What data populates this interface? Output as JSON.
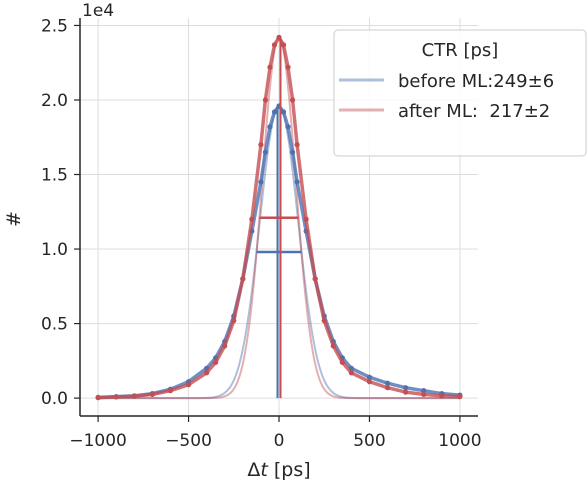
{
  "chart_data": {
    "type": "scatter",
    "title": "",
    "xlabel_prefix": "Δ",
    "xlabel_var": "t",
    "xlabel_unit": " [ps]",
    "ylabel": "#",
    "y_offset_label": "1e4",
    "xlim": [
      -1100,
      1100
    ],
    "ylim": [
      -0.12,
      2.55
    ],
    "x_ticks": [
      -1000,
      -500,
      0,
      500,
      1000
    ],
    "x_tick_labels": [
      "−1000",
      "−500",
      "0",
      "500",
      "1000"
    ],
    "y_ticks": [
      0.0,
      0.5,
      1.0,
      1.5,
      2.0,
      2.5
    ],
    "y_tick_labels": [
      "0.0",
      "0.5",
      "1.0",
      "1.5",
      "2.0",
      "2.5"
    ],
    "grid": true,
    "legend": {
      "title": "CTR [ps]",
      "placement": "top-right",
      "entries": [
        {
          "label": "before ML:249±6",
          "color": "#4c72b0"
        },
        {
          "label": "after ML:  217±2",
          "color": "#c44e52"
        }
      ]
    },
    "series": [
      {
        "name": "before ML:249±6",
        "color": "#4c72b0",
        "peak": 1.96,
        "fwhm": 249,
        "half_max": 0.98,
        "half_max_x": [
          -124.5,
          124.5
        ],
        "points_x": [
          -1000,
          -900,
          -800,
          -700,
          -600,
          -500,
          -400,
          -350,
          -300,
          -250,
          -200,
          -150,
          -100,
          -75,
          -50,
          -25,
          0,
          25,
          50,
          75,
          100,
          150,
          200,
          250,
          300,
          350,
          400,
          500,
          600,
          700,
          800,
          900,
          1000
        ],
        "points_y": [
          0.005,
          0.01,
          0.015,
          0.03,
          0.06,
          0.11,
          0.2,
          0.27,
          0.38,
          0.55,
          0.8,
          1.12,
          1.45,
          1.65,
          1.82,
          1.92,
          1.96,
          1.92,
          1.82,
          1.65,
          1.45,
          1.12,
          0.8,
          0.55,
          0.38,
          0.27,
          0.2,
          0.14,
          0.1,
          0.07,
          0.05,
          0.03,
          0.02
        ]
      },
      {
        "name": "after ML:  217±2",
        "color": "#c44e52",
        "peak": 2.42,
        "fwhm": 217,
        "half_max": 1.21,
        "half_max_x": [
          -108.5,
          108.5
        ],
        "points_x": [
          -1000,
          -900,
          -800,
          -700,
          -600,
          -500,
          -400,
          -350,
          -300,
          -250,
          -200,
          -150,
          -100,
          -75,
          -50,
          -25,
          0,
          25,
          50,
          75,
          100,
          150,
          200,
          250,
          300,
          350,
          400,
          500,
          600,
          700,
          800,
          900,
          1000
        ],
        "points_y": [
          0.003,
          0.008,
          0.013,
          0.025,
          0.05,
          0.09,
          0.17,
          0.24,
          0.35,
          0.52,
          0.8,
          1.2,
          1.7,
          2.0,
          2.22,
          2.37,
          2.42,
          2.37,
          2.22,
          2.0,
          1.7,
          1.2,
          0.8,
          0.52,
          0.35,
          0.24,
          0.17,
          0.11,
          0.07,
          0.04,
          0.025,
          0.015,
          0.01
        ]
      }
    ]
  }
}
